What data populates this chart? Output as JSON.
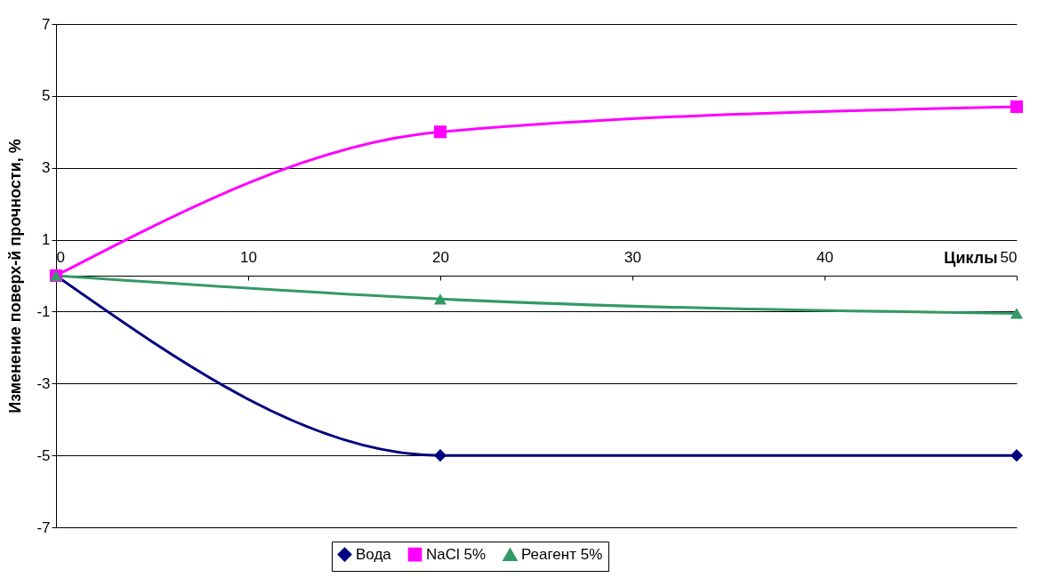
{
  "chart_data": {
    "type": "line",
    "xlabel": "Циклы",
    "ylabel": "Изменение поверх-й прочности, %",
    "x": [
      0,
      20,
      50
    ],
    "xlim": [
      0,
      50
    ],
    "xticks": [
      0,
      10,
      20,
      30,
      40,
      50
    ],
    "ylim": [
      -7,
      7
    ],
    "yticks": [
      -7,
      -5,
      -3,
      -1,
      1,
      3,
      5,
      7
    ],
    "grid": "y",
    "legend": "bottom",
    "series": [
      {
        "name": "Вода",
        "color": "#000080",
        "marker": "diamond",
        "values": [
          0,
          -5,
          -5
        ]
      },
      {
        "name": "NaCl 5%",
        "color": "#ff00ff",
        "marker": "square",
        "values": [
          0,
          4,
          4.7
        ]
      },
      {
        "name": "Реагент 5%",
        "color": "#339966",
        "marker": "triangle",
        "values": [
          0,
          -0.65,
          -1.05
        ]
      }
    ]
  }
}
